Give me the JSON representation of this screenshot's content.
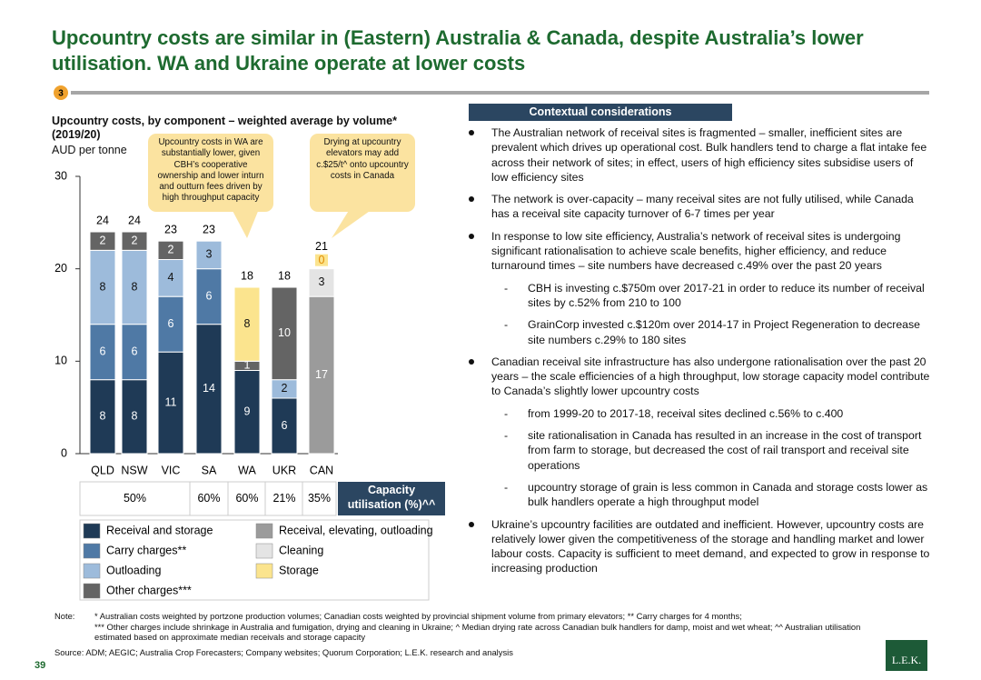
{
  "header": {
    "title": "Upcountry costs are similar in (Eastern) Australia & Canada, despite Australia’s lower utilisation. WA and Ukraine operate at lower costs",
    "badge": "3"
  },
  "chart_data": {
    "type": "bar",
    "stacked": true,
    "title": "Upcountry costs, by component – weighted average by volume* (2019/20)",
    "y_label": "AUD per tonne",
    "categories": [
      "QLD",
      "NSW",
      "VIC",
      "SA",
      "WA",
      "UKR",
      "CAN"
    ],
    "series": [
      {
        "name": "Receival and storage",
        "color": "#1f3a56",
        "values": [
          8,
          8,
          11,
          14,
          9,
          6,
          null
        ]
      },
      {
        "name": "Carry charges**",
        "color": "#4f79a5",
        "values": [
          6,
          6,
          6,
          6,
          null,
          null,
          null
        ]
      },
      {
        "name": "Outloading",
        "color": "#9dbbdb",
        "values": [
          8,
          8,
          4,
          3,
          null,
          2,
          null
        ]
      },
      {
        "name": "Other charges***",
        "color": "#646464",
        "values": [
          2,
          2,
          2,
          null,
          1,
          10,
          null
        ]
      },
      {
        "name": "Receival, elevating, outloading",
        "color": "#9b9b9b",
        "values": [
          null,
          null,
          null,
          null,
          null,
          null,
          17
        ]
      },
      {
        "name": "Cleaning",
        "color": "#e4e4e4",
        "values": [
          null,
          null,
          null,
          null,
          null,
          null,
          3
        ]
      },
      {
        "name": "Storage",
        "color": "#fbe48e",
        "values": [
          null,
          null,
          null,
          null,
          8,
          null,
          0
        ]
      }
    ],
    "totals": [
      24,
      24,
      23,
      23,
      18,
      18,
      21
    ],
    "ylim": [
      0,
      30
    ],
    "yticks": [
      0,
      10,
      20,
      30
    ],
    "annotations": [
      "Upcountry costs in WA are substantially lower, given CBH’s cooperative ownership and lower inturn and outturn fees driven by high throughput capacity",
      "Drying at upcountry elevators may add c.$25/t^ onto upcountry costs in Canada"
    ],
    "utilisation": {
      "label": "Capacity utilisation (%)^^",
      "cells": [
        "50%",
        "60%",
        "60%",
        "21%",
        "35%"
      ]
    }
  },
  "context": {
    "title": "Contextual considerations",
    "bullets": [
      {
        "text": "The Australian network of receival sites is fragmented – smaller, inefficient sites are prevalent which drives up operational cost. Bulk handlers tend to charge a flat intake fee across their network of sites; in effect, users of high efficiency sites subsidise users of low efficiency sites",
        "sub": []
      },
      {
        "text": "The network is over-capacity – many receival sites are not fully utilised, while Canada has a receival site capacity turnover of 6-7 times per year",
        "sub": []
      },
      {
        "text": "In response to low site efficiency, Australia’s network of receival sites is undergoing significant rationalisation to achieve scale benefits, higher efficiency, and reduce turnaround times – site numbers have decreased c.49% over the past 20 years",
        "sub": [
          "CBH is investing c.$750m over 2017-21 in order to reduce its number of receival sites by c.52% from 210 to 100",
          "GrainCorp invested c.$120m over 2014-17 in Project Regeneration to decrease site numbers c.29% to 180 sites"
        ]
      },
      {
        "text": "Canadian receival site infrastructure has also undergone rationalisation over the past 20 years – the scale efficiencies of a high throughput, low storage capacity model contribute to Canada’s slightly lower upcountry costs",
        "sub": [
          "from 1999-20 to 2017-18, receival sites declined c.56% to c.400",
          "site rationalisation in Canada has resulted in an increase in the cost of transport from farm to storage, but decreased the cost of rail transport and receival site operations",
          "upcountry storage of grain is less common in Canada and storage costs lower as bulk handlers operate a high throughput model"
        ]
      },
      {
        "text": "Ukraine’s upcountry facilities are outdated and inefficient. However, upcountry costs are relatively lower given the competitiveness of the storage and handling market and lower labour costs. Capacity is sufficient to meet demand, and expected to grow in response to increasing production",
        "sub": []
      }
    ]
  },
  "footer": {
    "note_label": "Note:",
    "notes": [
      "* Australian costs weighted by portzone production volumes; Canadian costs weighted by provincial shipment volume from primary elevators; ** Carry charges for 4 months;",
      "*** Other charges include shrinkage in Australia and fumigation, drying and cleaning in Ukraine; ^ Median drying rate across Canadian bulk handlers for damp, moist and wet wheat; ^^ Australian utilisation estimated based on approximate median receivals and storage capacity"
    ],
    "source": "Source: ADM; AEGIC; Australia Crop Forecasters; Company websites; Quorum Corporation; L.E.K. research and analysis",
    "page": "39",
    "logo": "L.E.K."
  }
}
